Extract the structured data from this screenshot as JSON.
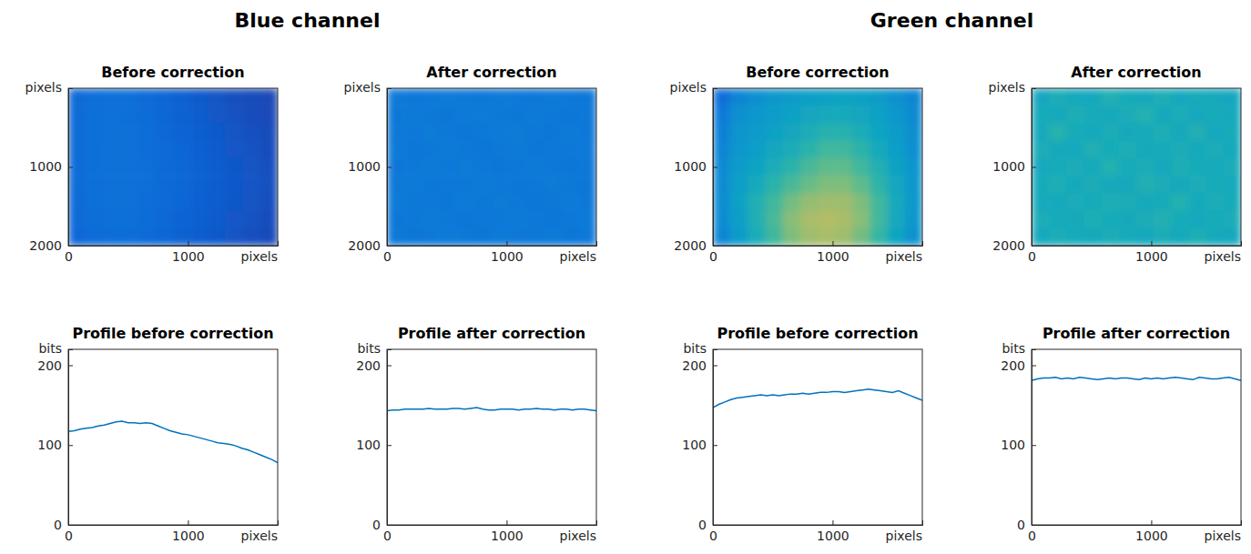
{
  "chart_data": [
    {
      "title": "Blue channel",
      "panels": [
        {
          "type": "heatmap",
          "title": "Before correction",
          "x_label": "pixels",
          "y_label": "pixels",
          "xlim": [
            0,
            1750
          ],
          "ylim": [
            0,
            2000
          ],
          "xticks": [
            0,
            1000
          ],
          "yticks": [
            1000,
            2000
          ],
          "color_range": [
            40,
            540
          ],
          "cells": [
            [
              118,
              124,
              127,
              126,
              120,
              112,
              105,
              96,
              88,
              82,
              78,
              74
            ],
            [
              120,
              126,
              129,
              128,
              122,
              114,
              107,
              99,
              91,
              85,
              80,
              76
            ],
            [
              121,
              127,
              130,
              129,
              124,
              117,
              110,
              102,
              95,
              88,
              83,
              79
            ],
            [
              122,
              128,
              131,
              130,
              125,
              119,
              112,
              105,
              98,
              91,
              86,
              81
            ],
            [
              122,
              128,
              131,
              130,
              126,
              120,
              113,
              106,
              99,
              93,
              88,
              83
            ],
            [
              121,
              127,
              130,
              130,
              126,
              120,
              113,
              106,
              100,
              94,
              89,
              84
            ],
            [
              120,
              126,
              129,
              129,
              125,
              119,
              112,
              105,
              99,
              93,
              88,
              83
            ],
            [
              118,
              124,
              127,
              127,
              123,
              117,
              110,
              103,
              97,
              91,
              86,
              81
            ],
            [
              115,
              121,
              124,
              124,
              120,
              114,
              107,
              100,
              94,
              88,
              83,
              78
            ]
          ]
        },
        {
          "type": "heatmap",
          "title": "After correction",
          "x_label": "pixels",
          "y_label": "pixels",
          "xlim": [
            0,
            1750
          ],
          "ylim": [
            0,
            2000
          ],
          "xticks": [
            0,
            1000
          ],
          "yticks": [
            1000,
            2000
          ],
          "color_range": [
            100,
            320
          ],
          "cells": [
            [
              146,
              144,
              145,
              147,
              145,
              144,
              146,
              145,
              144,
              146,
              145,
              144
            ],
            [
              144,
              146,
              145,
              144,
              146,
              147,
              145,
              144,
              146,
              145,
              144,
              145
            ],
            [
              145,
              145,
              147,
              145,
              144,
              145,
              146,
              148,
              145,
              144,
              146,
              145
            ],
            [
              146,
              144,
              145,
              146,
              145,
              144,
              145,
              146,
              144,
              145,
              145,
              146
            ],
            [
              144,
              145,
              146,
              145,
              147,
              145,
              144,
              145,
              146,
              145,
              144,
              145
            ],
            [
              145,
              146,
              144,
              145,
              145,
              146,
              145,
              144,
              145,
              147,
              145,
              144
            ],
            [
              146,
              145,
              145,
              144,
              146,
              145,
              147,
              145,
              144,
              145,
              146,
              145
            ],
            [
              144,
              145,
              146,
              145,
              144,
              145,
              145,
              146,
              145,
              144,
              145,
              146
            ],
            [
              145,
              144,
              145,
              146,
              145,
              144,
              146,
              145,
              145,
              146,
              144,
              145
            ]
          ]
        },
        {
          "type": "line",
          "title": "Profile before correction",
          "x_label": "pixels",
          "y_label": "bits",
          "xlim": [
            0,
            1750
          ],
          "ylim": [
            0,
            220
          ],
          "xticks": [
            0,
            1000
          ],
          "yticks": [
            0,
            100,
            200
          ],
          "x": [
            0,
            50,
            100,
            150,
            200,
            250,
            300,
            350,
            400,
            450,
            500,
            550,
            600,
            650,
            700,
            750,
            800,
            850,
            900,
            950,
            1000,
            1050,
            1100,
            1150,
            1200,
            1250,
            1300,
            1350,
            1400,
            1450,
            1500,
            1550,
            1600,
            1650,
            1700,
            1750
          ],
          "series": [
            {
              "color": "#0072bd",
              "values": [
                117,
                118,
                120,
                121,
                122,
                124,
                125,
                127,
                129,
                130,
                128,
                128,
                127,
                128,
                127,
                124,
                121,
                118,
                116,
                114,
                113,
                111,
                109,
                107,
                105,
                103,
                102,
                101,
                99,
                96,
                94,
                91,
                88,
                85,
                82,
                78
              ]
            }
          ]
        },
        {
          "type": "line",
          "title": "Profile after correction",
          "x_label": "pixels",
          "y_label": "bits",
          "xlim": [
            0,
            1750
          ],
          "ylim": [
            0,
            220
          ],
          "xticks": [
            0,
            1000
          ],
          "yticks": [
            0,
            100,
            200
          ],
          "x": [
            0,
            50,
            100,
            150,
            200,
            250,
            300,
            350,
            400,
            450,
            500,
            550,
            600,
            650,
            700,
            750,
            800,
            850,
            900,
            950,
            1000,
            1050,
            1100,
            1150,
            1200,
            1250,
            1300,
            1350,
            1400,
            1450,
            1500,
            1550,
            1600,
            1650,
            1700,
            1750
          ],
          "series": [
            {
              "color": "#0072bd",
              "values": [
                143,
                144,
                144,
                145,
                145,
                145,
                145,
                146,
                145,
                145,
                145,
                146,
                146,
                145,
                146,
                147,
                145,
                144,
                144,
                145,
                145,
                145,
                144,
                145,
                145,
                146,
                145,
                145,
                144,
                145,
                145,
                144,
                145,
                145,
                144,
                143
              ]
            }
          ]
        }
      ]
    },
    {
      "title": "Green channel",
      "panels": [
        {
          "type": "heatmap",
          "title": "Before correction",
          "x_label": "pixels",
          "y_label": "pixels",
          "xlim": [
            0,
            1750
          ],
          "ylim": [
            0,
            2000
          ],
          "xticks": [
            0,
            1000
          ],
          "yticks": [
            1000,
            2000
          ],
          "color_range": [
            120,
            240
          ],
          "cells": [
            [
              140,
              150,
              155,
              158,
              160,
              162,
              163,
              164,
              163,
              160,
              156,
              150
            ],
            [
              145,
              155,
              158,
              161,
              163,
              166,
              168,
              168,
              166,
              163,
              158,
              152
            ],
            [
              148,
              157,
              160,
              163,
              166,
              170,
              174,
              174,
              170,
              165,
              160,
              154
            ],
            [
              150,
              158,
              162,
              166,
              170,
              175,
              180,
              180,
              175,
              168,
              162,
              155
            ],
            [
              152,
              160,
              165,
              170,
              175,
              182,
              186,
              186,
              180,
              172,
              164,
              157
            ],
            [
              153,
              162,
              168,
              175,
              182,
              188,
              192,
              192,
              186,
              176,
              166,
              158
            ],
            [
              154,
              163,
              172,
              180,
              190,
              196,
              198,
              198,
              192,
              180,
              168,
              159
            ],
            [
              153,
              162,
              172,
              182,
              194,
              200,
              202,
              200,
              194,
              180,
              167,
              158
            ],
            [
              150,
              160,
              170,
              180,
              192,
              198,
              200,
              198,
              190,
              178,
              165,
              156
            ]
          ]
        },
        {
          "type": "heatmap",
          "title": "After correction",
          "x_label": "pixels",
          "y_label": "pixels",
          "xlim": [
            0,
            1750
          ],
          "ylim": [
            0,
            2000
          ],
          "xticks": [
            0,
            1000
          ],
          "yticks": [
            1000,
            2000
          ],
          "color_range": [
            140,
            250
          ],
          "cells": [
            [
              182,
              186,
              184,
              183,
              188,
              185,
              184,
              187,
              183,
              185,
              184,
              182
            ],
            [
              185,
              183,
              187,
              185,
              184,
              186,
              189,
              184,
              186,
              183,
              185,
              184
            ],
            [
              184,
              190,
              185,
              183,
              186,
              184,
              185,
              187,
              184,
              188,
              183,
              185
            ],
            [
              186,
              184,
              183,
              188,
              185,
              187,
              184,
              185,
              186,
              184,
              186,
              183
            ],
            [
              183,
              185,
              186,
              184,
              189,
              185,
              186,
              183,
              187,
              185,
              184,
              186
            ],
            [
              185,
              187,
              184,
              186,
              184,
              183,
              188,
              186,
              184,
              186,
              185,
              184
            ],
            [
              184,
              183,
              186,
              185,
              187,
              186,
              184,
              185,
              189,
              184,
              186,
              185
            ],
            [
              186,
              185,
              184,
              187,
              185,
              184,
              186,
              188,
              185,
              183,
              185,
              186
            ],
            [
              183,
              186,
              185,
              184,
              186,
              185,
              183,
              186,
              184,
              187,
              184,
              183
            ]
          ]
        },
        {
          "type": "line",
          "title": "Profile before correction",
          "x_label": "pixels",
          "y_label": "bits",
          "xlim": [
            0,
            1750
          ],
          "ylim": [
            0,
            220
          ],
          "xticks": [
            0,
            1000
          ],
          "yticks": [
            0,
            100,
            200
          ],
          "x": [
            0,
            50,
            100,
            150,
            200,
            250,
            300,
            350,
            400,
            450,
            500,
            550,
            600,
            650,
            700,
            750,
            800,
            850,
            900,
            950,
            1000,
            1050,
            1100,
            1150,
            1200,
            1250,
            1300,
            1350,
            1400,
            1450,
            1500,
            1550,
            1600,
            1650,
            1700,
            1750
          ],
          "series": [
            {
              "color": "#0072bd",
              "values": [
                147,
                151,
                154,
                157,
                159,
                160,
                161,
                162,
                163,
                162,
                163,
                162,
                163,
                164,
                164,
                165,
                164,
                165,
                166,
                166,
                167,
                167,
                166,
                167,
                168,
                169,
                170,
                169,
                168,
                167,
                166,
                168,
                165,
                162,
                159,
                156
              ]
            }
          ]
        },
        {
          "type": "line",
          "title": "Profile after correction",
          "x_label": "pixels",
          "y_label": "bits",
          "xlim": [
            0,
            1750
          ],
          "ylim": [
            0,
            220
          ],
          "xticks": [
            0,
            1000
          ],
          "yticks": [
            0,
            100,
            200
          ],
          "x": [
            0,
            50,
            100,
            150,
            200,
            250,
            300,
            350,
            400,
            450,
            500,
            550,
            600,
            650,
            700,
            750,
            800,
            850,
            900,
            950,
            1000,
            1050,
            1100,
            1150,
            1200,
            1250,
            1300,
            1350,
            1400,
            1450,
            1500,
            1550,
            1600,
            1650,
            1700,
            1750
          ],
          "series": [
            {
              "color": "#0072bd",
              "values": [
                181,
                183,
                184,
                184,
                185,
                183,
                184,
                183,
                185,
                184,
                183,
                182,
                183,
                184,
                183,
                184,
                184,
                183,
                182,
                184,
                183,
                184,
                183,
                184,
                185,
                184,
                183,
                182,
                185,
                184,
                183,
                183,
                184,
                185,
                183,
                181
              ]
            }
          ]
        }
      ]
    }
  ]
}
